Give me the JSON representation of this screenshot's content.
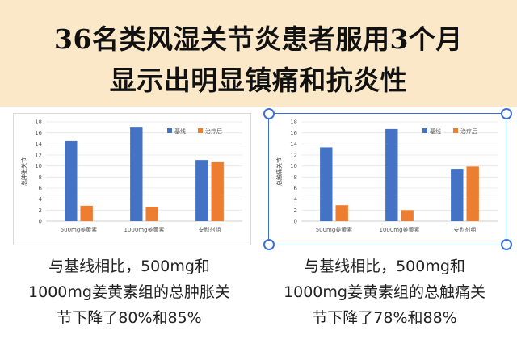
{
  "header": {
    "title_line1": "36名类风湿关节炎患者服用3个月",
    "title_line2": "显示出明显镇痛和抗炎性"
  },
  "chart_data": [
    {
      "type": "bar",
      "categories": [
        "500mg姜黄素",
        "1000mg姜黄素",
        "安慰剂组"
      ],
      "series": [
        {
          "name": "基线",
          "values": [
            14.5,
            17.1,
            11.1
          ]
        },
        {
          "name": "治疗后",
          "values": [
            2.8,
            2.6,
            10.7
          ]
        }
      ],
      "ylabel": "总肿胀关节",
      "ylim": [
        0,
        18
      ],
      "yticks": [
        0,
        2,
        4,
        6,
        8,
        10,
        12,
        14,
        16,
        18
      ],
      "legend": "top-right",
      "colors": [
        "#4472c4",
        "#ed7d31"
      ],
      "grid": true
    },
    {
      "type": "bar",
      "categories": [
        "500mg姜黄素",
        "1000mg姜黄素",
        "安慰剂组"
      ],
      "series": [
        {
          "name": "基线",
          "values": [
            13.4,
            16.7,
            9.5
          ]
        },
        {
          "name": "治疗后",
          "values": [
            2.9,
            2.0,
            9.9
          ]
        }
      ],
      "ylabel": "总触痛关节",
      "ylim": [
        0,
        18
      ],
      "yticks": [
        0,
        2,
        4,
        6,
        8,
        10,
        12,
        14,
        16,
        18
      ],
      "legend": "top-right",
      "colors": [
        "#4472c4",
        "#ed7d31"
      ],
      "grid": true
    }
  ],
  "captions": [
    {
      "line1": "与基线相比，500mg和",
      "line2": "1000mg姜黄素组的总肿胀关",
      "line3": "节下降了80%和85%"
    },
    {
      "line1": "与基线相比，500mg和",
      "line2": "1000mg姜黄素组的总触痛关",
      "line3": "节下降了78%和88%"
    }
  ]
}
